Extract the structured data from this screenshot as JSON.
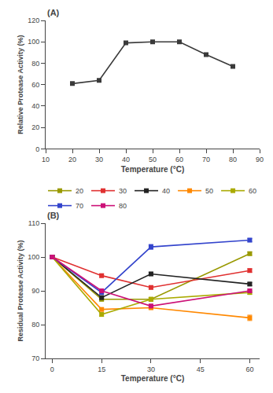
{
  "chart_data": [
    {
      "type": "line",
      "title": "(A)",
      "x_label": "Temperature (°C)",
      "y_label": "Relative Protease Activity (%)",
      "x": [
        20,
        30,
        40,
        50,
        60,
        70,
        80
      ],
      "values": [
        61,
        64,
        99,
        100,
        100,
        88,
        77
      ],
      "yerr": [
        0.8,
        0.8,
        0.8,
        0.8,
        0.5,
        0.8,
        0.8
      ],
      "color": "#3a3a3a",
      "marker": "square",
      "line_style": "solid",
      "xlim": [
        10,
        90
      ],
      "xticks": [
        10,
        20,
        30,
        40,
        50,
        60,
        70,
        80,
        90
      ],
      "ylim": [
        0,
        120
      ],
      "yticks": [
        0,
        20,
        40,
        60,
        80,
        100,
        120
      ],
      "grid": false
    },
    {
      "type": "line",
      "title": "(B)",
      "x_label": "Temperature (°C)",
      "y_label": "Residual Protease Activity (%)",
      "x": [
        0,
        15,
        30,
        60
      ],
      "series": [
        {
          "name": "20",
          "color": "#999900",
          "values": [
            100,
            87.5,
            87.5,
            101.0
          ],
          "yerr": [
            0.4,
            0.5,
            0.5,
            0.5
          ]
        },
        {
          "name": "30",
          "color": "#e03030",
          "values": [
            100,
            94.5,
            91.0,
            96.0
          ],
          "yerr": [
            0.4,
            0.5,
            0.5,
            0.5
          ]
        },
        {
          "name": "40",
          "color": "#222222",
          "values": [
            100,
            88.0,
            95.0,
            92.0
          ],
          "yerr": [
            0.4,
            0.5,
            0.5,
            0.5
          ]
        },
        {
          "name": "50",
          "color": "#ff8800",
          "values": [
            100,
            84.5,
            85.0,
            82.0
          ],
          "yerr": [
            0.4,
            0.5,
            0.5,
            0.8
          ]
        },
        {
          "name": "60",
          "color": "#aaaa00",
          "values": [
            100,
            83.0,
            87.5,
            89.5
          ],
          "yerr": [
            0.4,
            0.5,
            0.5,
            0.5
          ]
        },
        {
          "name": "70",
          "color": "#3344cc",
          "values": [
            100,
            89.5,
            103.0,
            105.0
          ],
          "yerr": [
            0.4,
            0.5,
            0.7,
            0.5
          ]
        },
        {
          "name": "80",
          "color": "#cc1177",
          "values": [
            100,
            90.0,
            85.5,
            90.0
          ],
          "yerr": [
            0.4,
            0.5,
            0.5,
            0.5
          ]
        }
      ],
      "marker": "square",
      "line_style": "solid",
      "xlim": [
        -2,
        63
      ],
      "xticks": [
        0,
        15,
        30,
        45,
        60
      ],
      "ylim": [
        70,
        110
      ],
      "yticks": [
        70,
        80,
        90,
        100,
        110
      ],
      "grid": false,
      "legend": "top"
    }
  ]
}
